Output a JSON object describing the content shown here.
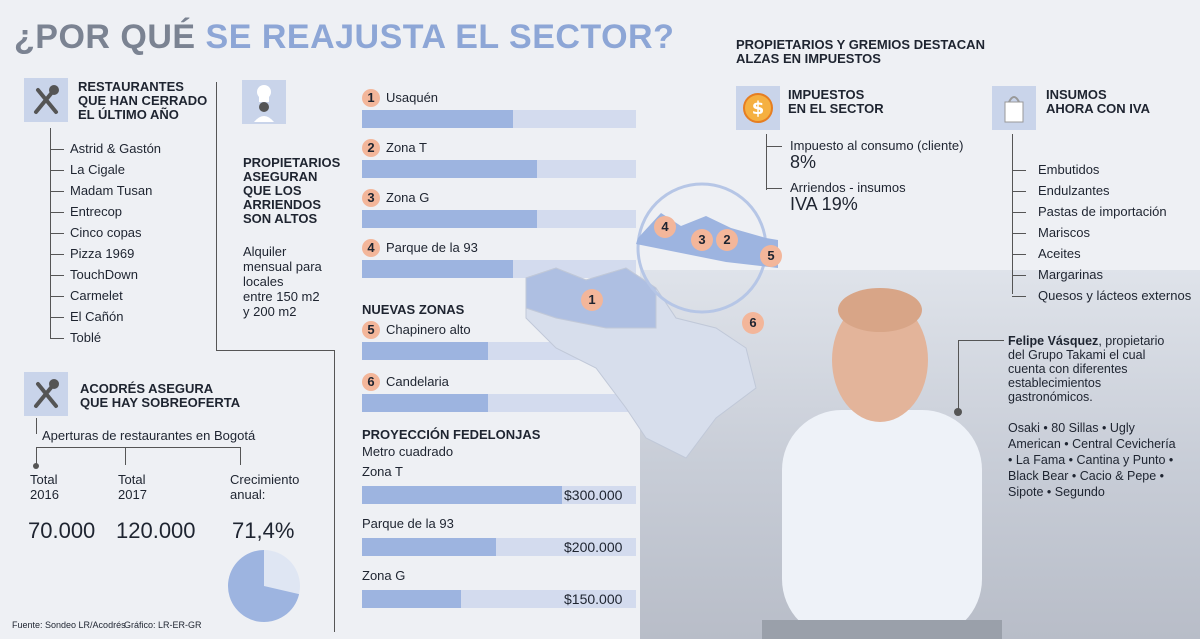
{
  "title": {
    "part1": "¿POR QUÉ",
    "part2": "SE REAJUSTA EL SECTOR?"
  },
  "closed": {
    "heading": [
      "RESTAURANTES",
      "QUE HAN CERRADO",
      "EL ÚLTIMO AÑO"
    ],
    "items": [
      "Astrid & Gastón",
      "La Cigale",
      "Madam Tusan",
      "Entrecop",
      "Cinco copas",
      "Pizza 1969",
      "TouchDown",
      "Carmelet",
      "El Cañón",
      "Toblé"
    ]
  },
  "rent": {
    "heading": [
      "PROPIETARIOS",
      "ASEGURAN",
      "QUE LOS",
      "ARRIENDOS",
      "SON ALTOS"
    ],
    "body": [
      "Alquiler",
      "mensual para",
      "locales",
      "entre 150 m2",
      "y 200 m2"
    ]
  },
  "zones": [
    {
      "num": "1",
      "label": "Usaquén",
      "fill": 0.55
    },
    {
      "num": "2",
      "label": "Zona T",
      "fill": 0.64
    },
    {
      "num": "3",
      "label": "Zona G",
      "fill": 0.64
    },
    {
      "num": "4",
      "label": "Parque de la 93",
      "fill": 0.55
    }
  ],
  "new_zones": {
    "heading": "NUEVAS ZONAS",
    "items": [
      {
        "num": "5",
        "label": "Chapinero alto",
        "fill": 0.46
      },
      {
        "num": "6",
        "label": "Candelaria",
        "fill": 0.46
      }
    ]
  },
  "fedelonjas": {
    "heading": "PROYECCIÓN FEDELONJAS",
    "sub": "Metro cuadrado",
    "items": [
      {
        "label": "Zona T",
        "value": "$300.000",
        "fill": 0.73
      },
      {
        "label": "Parque de la 93",
        "value": "$200.000",
        "fill": 0.49
      },
      {
        "label": "Zona G",
        "value": "$150.000",
        "fill": 0.36
      }
    ]
  },
  "acodres": {
    "heading": [
      "ACODRÉS ASEGURA",
      "QUE HAY SOBREOFERTA"
    ],
    "sub": "Aperturas de restaurantes en Bogotá",
    "col1": {
      "label": [
        "Total",
        "2016"
      ],
      "value": "70.000"
    },
    "col2": {
      "label": [
        "Total",
        "2017"
      ],
      "value": "120.000"
    },
    "col3": {
      "label": [
        "Crecimiento",
        "anual:"
      ],
      "value": "71,4%"
    },
    "pie_fraction": 0.714
  },
  "taxes": {
    "top_heading": [
      "PROPIETARIOS Y GREMIOS DESTACAN",
      "ALZAS EN IMPUESTOS"
    ],
    "heading": [
      "IMPUESTOS",
      "EN EL SECTOR"
    ],
    "item1": {
      "label": "Impuesto al consumo (cliente)",
      "value": "8%"
    },
    "item2": {
      "label": "Arriendos - insumos",
      "value": "IVA 19%"
    }
  },
  "supplies": {
    "heading": [
      "INSUMOS",
      "AHORA CON IVA"
    ],
    "items": [
      "Embutidos",
      "Endulzantes",
      "Pastas de importación",
      "Mariscos",
      "Aceites",
      "Margarinas",
      "Quesos y lácteos externos"
    ]
  },
  "map": {
    "labels": [
      "4",
      "3",
      "2",
      "5",
      "1",
      "6"
    ]
  },
  "person": {
    "name": "Felipe Vásquez",
    "desc": [
      ", propietario",
      "del Grupo Takami el cual",
      "cuenta con diferentes",
      "establecimientos",
      "gastronómicos."
    ],
    "brands": [
      "Osaki • 80 Sillas • Ugly",
      "American • Central Cevichería",
      "• La Fama • Cantina y Punto •",
      "Black Bear • Cacio & Pepe •",
      "Sipote • Segundo"
    ]
  },
  "footer": {
    "source": "Fuente: Sondeo LR/Acodrés",
    "graphic": "Gráfico: LR-ER-GR"
  },
  "colors": {
    "accent": "#8da6d6",
    "bar": "#9db4e0",
    "bar_bg": "#d3dbee",
    "badge": "#f3b69a",
    "icon_bg": "#c9d4ea"
  }
}
